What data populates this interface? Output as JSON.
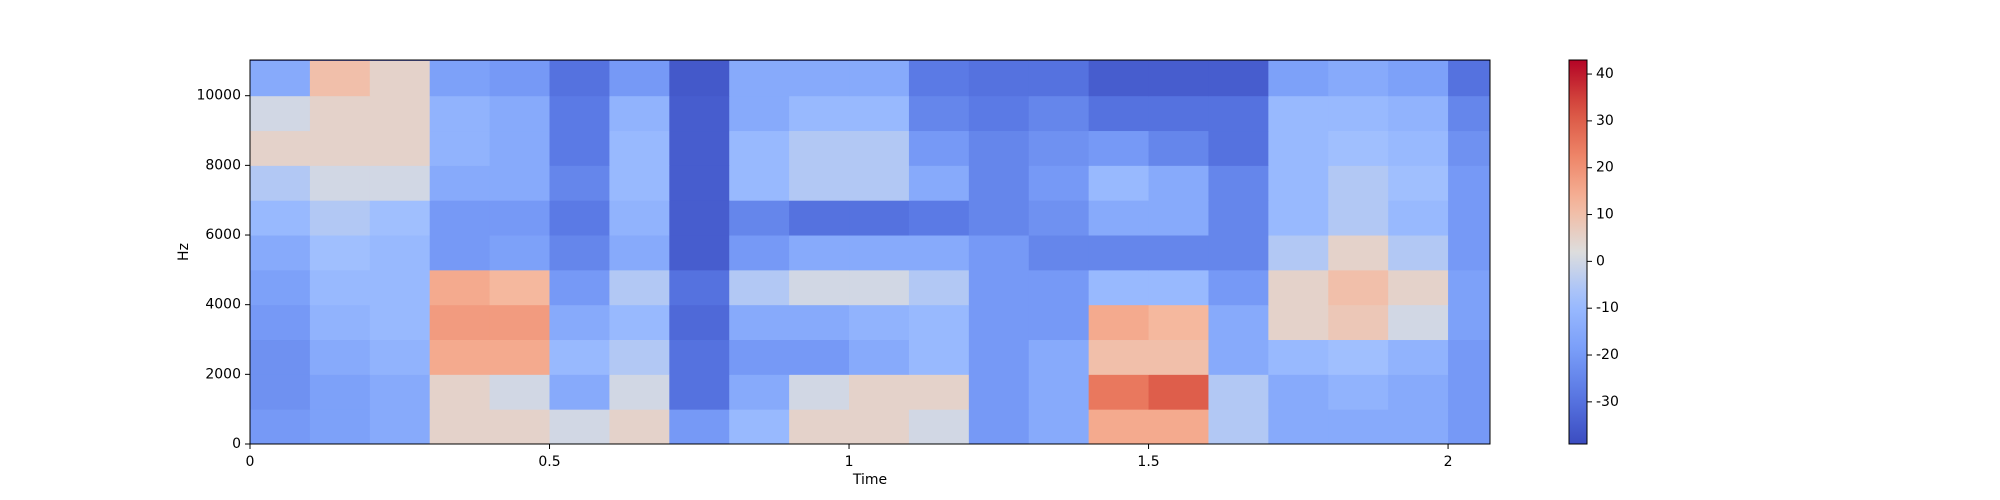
{
  "chart_data": {
    "type": "heatmap",
    "colormap": "coolwarm",
    "xlabel": "Time",
    "ylabel": "Hz",
    "x": [
      0.05,
      0.15,
      0.25,
      0.35,
      0.45,
      0.55,
      0.65,
      0.75,
      0.85,
      0.95,
      1.05,
      1.15,
      1.25,
      1.35,
      1.45,
      1.55,
      1.65,
      1.75,
      1.85,
      1.95,
      2.05
    ],
    "y": [
      500,
      1500,
      2500,
      3500,
      4500,
      5500,
      6500,
      7500,
      8500,
      9500,
      10500
    ],
    "values": [
      [
        -20,
        -18,
        -15,
        5,
        5,
        0,
        5,
        -20,
        -10,
        5,
        5,
        0,
        -20,
        -15,
        15,
        15,
        -5,
        -15,
        -15,
        -15,
        -20
      ],
      [
        -22,
        -18,
        -15,
        5,
        0,
        -15,
        0,
        -30,
        -15,
        0,
        5,
        5,
        -20,
        -15,
        25,
        30,
        -5,
        -15,
        -12,
        -15,
        -20
      ],
      [
        -22,
        -15,
        -12,
        15,
        15,
        -10,
        -5,
        -30,
        -20,
        -20,
        -15,
        -10,
        -20,
        -15,
        10,
        10,
        -15,
        -10,
        -8,
        -12,
        -20
      ],
      [
        -20,
        -12,
        -10,
        18,
        18,
        -15,
        -10,
        -32,
        -15,
        -15,
        -12,
        -10,
        -20,
        -20,
        15,
        12,
        -15,
        5,
        8,
        0,
        -18
      ],
      [
        -18,
        -10,
        -10,
        15,
        12,
        -20,
        -5,
        -30,
        -5,
        0,
        0,
        -5,
        -20,
        -20,
        -10,
        -10,
        -20,
        5,
        10,
        5,
        -18
      ],
      [
        -15,
        -8,
        -10,
        -20,
        -18,
        -25,
        -15,
        -35,
        -20,
        -15,
        -15,
        -15,
        -20,
        -25,
        -25,
        -25,
        -25,
        -5,
        5,
        -5,
        -20
      ],
      [
        -10,
        -5,
        -8,
        -20,
        -20,
        -28,
        -12,
        -35,
        -25,
        -30,
        -30,
        -28,
        -25,
        -22,
        -15,
        -15,
        -25,
        -10,
        -5,
        -10,
        -20
      ],
      [
        -5,
        0,
        0,
        -15,
        -15,
        -25,
        -10,
        -35,
        -10,
        -5,
        -5,
        -15,
        -25,
        -20,
        -10,
        -15,
        -25,
        -10,
        -5,
        -8,
        -20
      ],
      [
        5,
        5,
        5,
        -12,
        -15,
        -28,
        -10,
        -35,
        -10,
        -5,
        -5,
        -20,
        -25,
        -22,
        -20,
        -25,
        -30,
        -10,
        -8,
        -10,
        -22
      ],
      [
        0,
        5,
        5,
        -12,
        -15,
        -28,
        -12,
        -35,
        -15,
        -10,
        -10,
        -25,
        -28,
        -25,
        -30,
        -30,
        -30,
        -10,
        -10,
        -12,
        -25
      ],
      [
        -15,
        10,
        5,
        -18,
        -20,
        -30,
        -20,
        -36,
        -15,
        -15,
        -15,
        -28,
        -30,
        -30,
        -35,
        -35,
        -35,
        -18,
        -15,
        -18,
        -30
      ]
    ],
    "xlim": [
      0,
      2.07
    ],
    "xticks": [
      0,
      0.5,
      1,
      1.5,
      2
    ],
    "ylim": [
      0,
      11025
    ],
    "yticks": [
      0,
      2000,
      4000,
      6000,
      8000,
      10000
    ],
    "zlim": [
      -39,
      43
    ],
    "zticks": [
      -30,
      -20,
      -10,
      0,
      10,
      20,
      30,
      40
    ]
  }
}
